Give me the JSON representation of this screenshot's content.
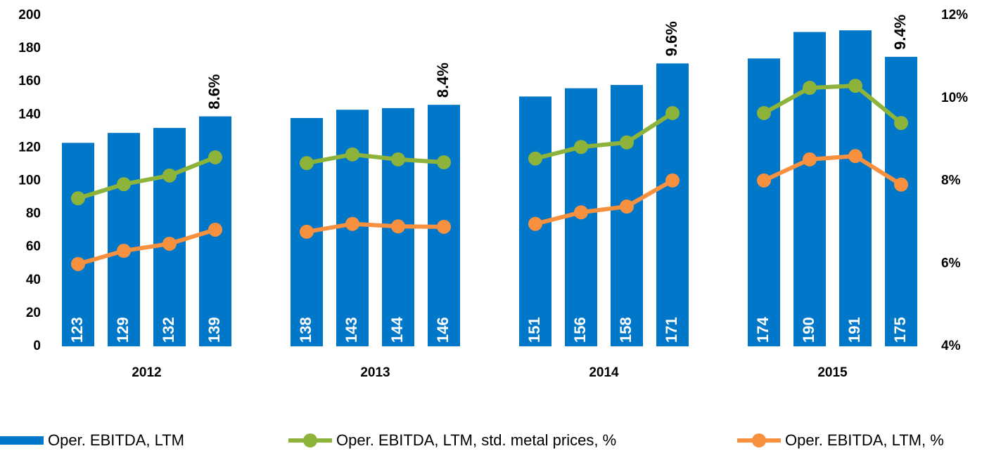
{
  "chart_data": {
    "type": "bar-line",
    "categories": [
      null,
      null,
      null,
      null,
      null,
      null,
      null,
      null,
      null,
      null,
      null,
      null,
      null,
      null,
      null,
      null
    ],
    "groups": [
      "2012",
      "2013",
      "2014",
      "2015"
    ],
    "series": [
      {
        "name": "Oper. EBITDA, LTM",
        "type": "bar",
        "color": "#0077c8",
        "axis": "y",
        "values": [
          123,
          129,
          132,
          139,
          138,
          143,
          144,
          146,
          151,
          156,
          158,
          171,
          174,
          190,
          191,
          175
        ]
      },
      {
        "name": "Oper. EBITDA, LTM, std. metal prices, %",
        "type": "line",
        "color": "#8db33a",
        "axis": "y2",
        "values": [
          7.58,
          7.92,
          8.13,
          8.57,
          8.43,
          8.64,
          8.52,
          8.45,
          8.54,
          8.82,
          8.93,
          9.64,
          9.64,
          10.25,
          10.3,
          9.4
        ],
        "value_labels": [
          null,
          null,
          null,
          "8.6%",
          null,
          null,
          null,
          "8.4%",
          null,
          null,
          null,
          "9.6%",
          null,
          null,
          null,
          "9.4%"
        ]
      },
      {
        "name": "Oper. EBITDA, LTM, %",
        "type": "line",
        "color": "#f7903f",
        "axis": "y2",
        "values": [
          5.99,
          6.31,
          6.48,
          6.82,
          6.77,
          6.96,
          6.9,
          6.89,
          6.96,
          7.24,
          7.38,
          8.01,
          8.01,
          8.52,
          8.6,
          7.91
        ]
      }
    ],
    "ylim": [
      0,
      200
    ],
    "yticks": [
      0,
      20,
      40,
      60,
      80,
      100,
      120,
      140,
      160,
      180,
      200
    ],
    "y2lim": [
      4,
      12
    ],
    "y2ticks": [
      {
        "value": 4,
        "label": "4%"
      },
      {
        "value": 6,
        "label": "6%"
      },
      {
        "value": 8,
        "label": "8%"
      },
      {
        "value": 10,
        "label": "10%"
      },
      {
        "value": 12,
        "label": "12%"
      }
    ],
    "legend": "bottom"
  }
}
